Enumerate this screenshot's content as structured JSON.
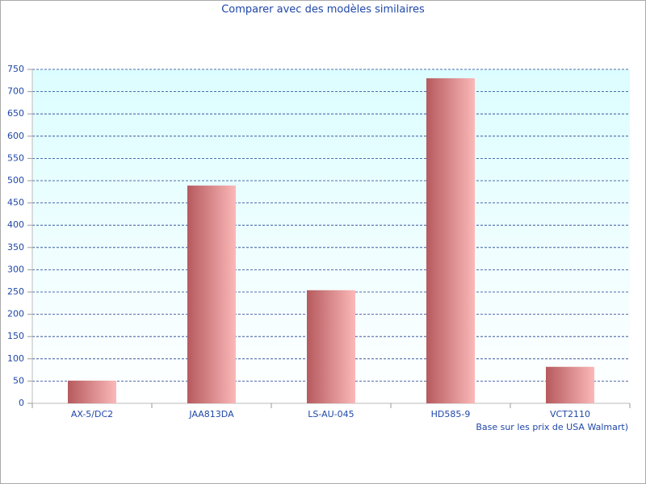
{
  "chart_data": {
    "type": "bar",
    "title": "Comparer avec des modèles similaires",
    "x_label": "Base sur les prix de USA Walmart)",
    "categories": [
      "AX-5/DC2",
      "JAA813DA",
      "LS-AU-045",
      "HD585-9",
      "VCT2110"
    ],
    "values": [
      51,
      489,
      254,
      730,
      82
    ],
    "color": "#b65a5e",
    "ylim": [
      0,
      750
    ],
    "yticks": [
      0,
      50,
      100,
      150,
      200,
      250,
      300,
      350,
      400,
      450,
      500,
      550,
      600,
      650,
      700,
      750
    ],
    "grid": true
  }
}
